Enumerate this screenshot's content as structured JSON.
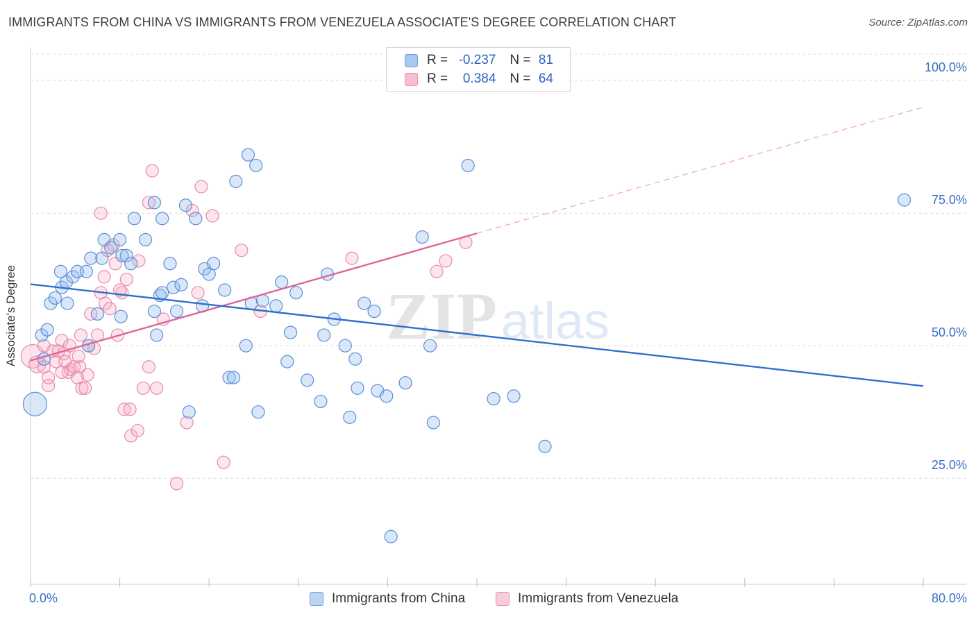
{
  "title": "IMMIGRANTS FROM CHINA VS IMMIGRANTS FROM VENEZUELA ASSOCIATE'S DEGREE CORRELATION CHART",
  "source": "Source: ZipAtlas.com",
  "watermark": {
    "zip": "ZIP",
    "atlas": "atlas"
  },
  "legend": {
    "r_label": "R =",
    "n_label": "N =",
    "rows": [
      {
        "r": "-0.237",
        "n": "81",
        "fill": "#a9c8ef",
        "stroke": "#6f9fdf"
      },
      {
        "r": "0.384",
        "n": "64",
        "fill": "#f6bfcf",
        "stroke": "#ea8fac"
      }
    ]
  },
  "bottom_legend": [
    "Immigrants from China",
    "Immigrants from Venezuela"
  ],
  "colors": {
    "china_fill": "rgba(147,186,235,0.35)",
    "china_stroke": "#5a8fd8",
    "china_line": "#2f6fd0",
    "ven_fill": "rgba(244,170,192,0.3)",
    "ven_stroke": "#e98aa8",
    "ven_line": "#e0649a",
    "tick_text": "#3a6fc4",
    "grid": "#dcdcdc"
  },
  "chart_data": {
    "type": "scatter",
    "title": "IMMIGRANTS FROM CHINA VS IMMIGRANTS FROM VENEZUELA ASSOCIATE'S DEGREE CORRELATION CHART",
    "xlabel": "",
    "ylabel": "Associate's Degree",
    "xlim": [
      0,
      80
    ],
    "ylim": [
      5,
      105
    ],
    "x_tick_labels": [
      "0.0%",
      "80.0%"
    ],
    "y_ticks": [
      25,
      50,
      75,
      100
    ],
    "y_tick_labels": [
      "25.0%",
      "50.0%",
      "75.0%",
      "100.0%"
    ],
    "grid": true,
    "legend_position": "top-center",
    "series": [
      {
        "name": "Immigrants from China",
        "r": -0.237,
        "n": 81,
        "trend": {
          "x": [
            0,
            80
          ],
          "y": [
            61.6,
            42.4
          ]
        },
        "points": [
          [
            0.4,
            39,
            3
          ],
          [
            1.2,
            47.5,
            1
          ],
          [
            1,
            52,
            1
          ],
          [
            1.5,
            53,
            1
          ],
          [
            1.8,
            58,
            1
          ],
          [
            2.2,
            59,
            1
          ],
          [
            2.8,
            61,
            1
          ],
          [
            3.2,
            62,
            1
          ],
          [
            2.7,
            64,
            1
          ],
          [
            3.8,
            63,
            1
          ],
          [
            4.2,
            64,
            1
          ],
          [
            5,
            64,
            1
          ],
          [
            5.4,
            66.5,
            1
          ],
          [
            6.4,
            66.5,
            1
          ],
          [
            6.6,
            70,
            1
          ],
          [
            7.2,
            68.5,
            1
          ],
          [
            8,
            70,
            1
          ],
          [
            8.2,
            67,
            1
          ],
          [
            8.6,
            67,
            1
          ],
          [
            9,
            65.5,
            1
          ],
          [
            9.3,
            74,
            1
          ],
          [
            10.3,
            70,
            1
          ],
          [
            11.1,
            77,
            1
          ],
          [
            11.8,
            74,
            1
          ],
          [
            12.5,
            65.5,
            1
          ],
          [
            12.8,
            61,
            1
          ],
          [
            13.5,
            61.5,
            1
          ],
          [
            13.9,
            76.5,
            1
          ],
          [
            14.8,
            74,
            1
          ],
          [
            15.6,
            64.5,
            1
          ],
          [
            16,
            63.5,
            1
          ],
          [
            16.4,
            65.5,
            1
          ],
          [
            18.4,
            81,
            1
          ],
          [
            19.5,
            86,
            1
          ],
          [
            20.2,
            84,
            1
          ],
          [
            11.1,
            56.5,
            1
          ],
          [
            11.3,
            52,
            1
          ],
          [
            11.6,
            59.5,
            1
          ],
          [
            11.8,
            60,
            1
          ],
          [
            13.1,
            56.5,
            1
          ],
          [
            14.2,
            37.5,
            1
          ],
          [
            15.4,
            57.5,
            1
          ],
          [
            17.4,
            60.5,
            1
          ],
          [
            17.8,
            44,
            1
          ],
          [
            18.2,
            44,
            1
          ],
          [
            19.3,
            50,
            1
          ],
          [
            19.8,
            58,
            1
          ],
          [
            20.4,
            37.5,
            1
          ],
          [
            20.8,
            58.5,
            1
          ],
          [
            22,
            57.5,
            1
          ],
          [
            22.5,
            62,
            1
          ],
          [
            23,
            47,
            1
          ],
          [
            23.3,
            52.5,
            1
          ],
          [
            23.8,
            60,
            1
          ],
          [
            24.8,
            43.5,
            1
          ],
          [
            26,
            39.5,
            1
          ],
          [
            26.3,
            52,
            1
          ],
          [
            26.6,
            63.5,
            1
          ],
          [
            27.2,
            55,
            1
          ],
          [
            28.2,
            50,
            1
          ],
          [
            28.6,
            36.5,
            1
          ],
          [
            29.1,
            47.5,
            1
          ],
          [
            29.3,
            42,
            1
          ],
          [
            29.9,
            58,
            1
          ],
          [
            30.8,
            56.5,
            1
          ],
          [
            31.1,
            41.5,
            1
          ],
          [
            31.9,
            40.5,
            1
          ],
          [
            32.3,
            14,
            1
          ],
          [
            33.6,
            43,
            1
          ],
          [
            35.1,
            70.5,
            1
          ],
          [
            35.8,
            50,
            1
          ],
          [
            36.1,
            35.5,
            1
          ],
          [
            39.2,
            84,
            1
          ],
          [
            41.5,
            40,
            1
          ],
          [
            43.3,
            40.5,
            1
          ],
          [
            46.1,
            31,
            1
          ],
          [
            78.3,
            77.5,
            1
          ],
          [
            8.1,
            55.5,
            1
          ],
          [
            5.2,
            50,
            1
          ],
          [
            6,
            56,
            1
          ],
          [
            3.3,
            58,
            1
          ]
        ]
      },
      {
        "name": "Immigrants from Venezuela",
        "r": 0.384,
        "n": 64,
        "trend": {
          "x": [
            0,
            40
          ],
          "y": [
            47.2,
            71.2
          ]
        },
        "trend_dashed": {
          "x": [
            40,
            80
          ],
          "y": [
            71.2,
            95
          ]
        },
        "points": [
          [
            0.2,
            48,
            3
          ],
          [
            0.6,
            46.5,
            2
          ],
          [
            1.2,
            46,
            1
          ],
          [
            1.6,
            44,
            1
          ],
          [
            1.6,
            42.5,
            1
          ],
          [
            1.2,
            50,
            1
          ],
          [
            2,
            49,
            1
          ],
          [
            2.3,
            47,
            1
          ],
          [
            2.8,
            51,
            1
          ],
          [
            3,
            48.5,
            1
          ],
          [
            3.1,
            47,
            1
          ],
          [
            3.4,
            45,
            1
          ],
          [
            3.6,
            45.5,
            1
          ],
          [
            3.9,
            46,
            1
          ],
          [
            4.2,
            44,
            1
          ],
          [
            4.5,
            52,
            1
          ],
          [
            4.4,
            46,
            1
          ],
          [
            5.2,
            50,
            1
          ],
          [
            5.4,
            56,
            1
          ],
          [
            5.7,
            49.5,
            1
          ],
          [
            4.6,
            42,
            1
          ],
          [
            4.9,
            42,
            1
          ],
          [
            4.3,
            48,
            1
          ],
          [
            5.1,
            44.5,
            1
          ],
          [
            6.3,
            60,
            1
          ],
          [
            6.7,
            58,
            1
          ],
          [
            7.1,
            57,
            1
          ],
          [
            6.3,
            75,
            1
          ],
          [
            6.9,
            68,
            1
          ],
          [
            7.6,
            65.5,
            1
          ],
          [
            7.4,
            69,
            1
          ],
          [
            8.2,
            60,
            1
          ],
          [
            8.6,
            62.5,
            1
          ],
          [
            7.8,
            52,
            1
          ],
          [
            8.4,
            38,
            1
          ],
          [
            8.9,
            38,
            1
          ],
          [
            9,
            33,
            1
          ],
          [
            9.6,
            34,
            1
          ],
          [
            9.7,
            66,
            1
          ],
          [
            10.1,
            42,
            1
          ],
          [
            10.6,
            77,
            1
          ],
          [
            10.6,
            46,
            1
          ],
          [
            10.9,
            83,
            1
          ],
          [
            11.3,
            42,
            1
          ],
          [
            11.9,
            55,
            1
          ],
          [
            13.1,
            24,
            1
          ],
          [
            14,
            35.5,
            1
          ],
          [
            14.5,
            75.5,
            1
          ],
          [
            15,
            60,
            1
          ],
          [
            15.3,
            80,
            1
          ],
          [
            16.3,
            74.5,
            1
          ],
          [
            17.3,
            28,
            1
          ],
          [
            18.9,
            68,
            1
          ],
          [
            20.6,
            56.5,
            1
          ],
          [
            28.8,
            66.5,
            1
          ],
          [
            36.4,
            64,
            1
          ],
          [
            37.2,
            66,
            1
          ],
          [
            39,
            69.5,
            1
          ],
          [
            2.5,
            49,
            1
          ],
          [
            3.5,
            50,
            1
          ],
          [
            6,
            52,
            1
          ],
          [
            6.6,
            63,
            1
          ],
          [
            8,
            60.5,
            1
          ],
          [
            2.8,
            45,
            1
          ]
        ]
      }
    ]
  }
}
